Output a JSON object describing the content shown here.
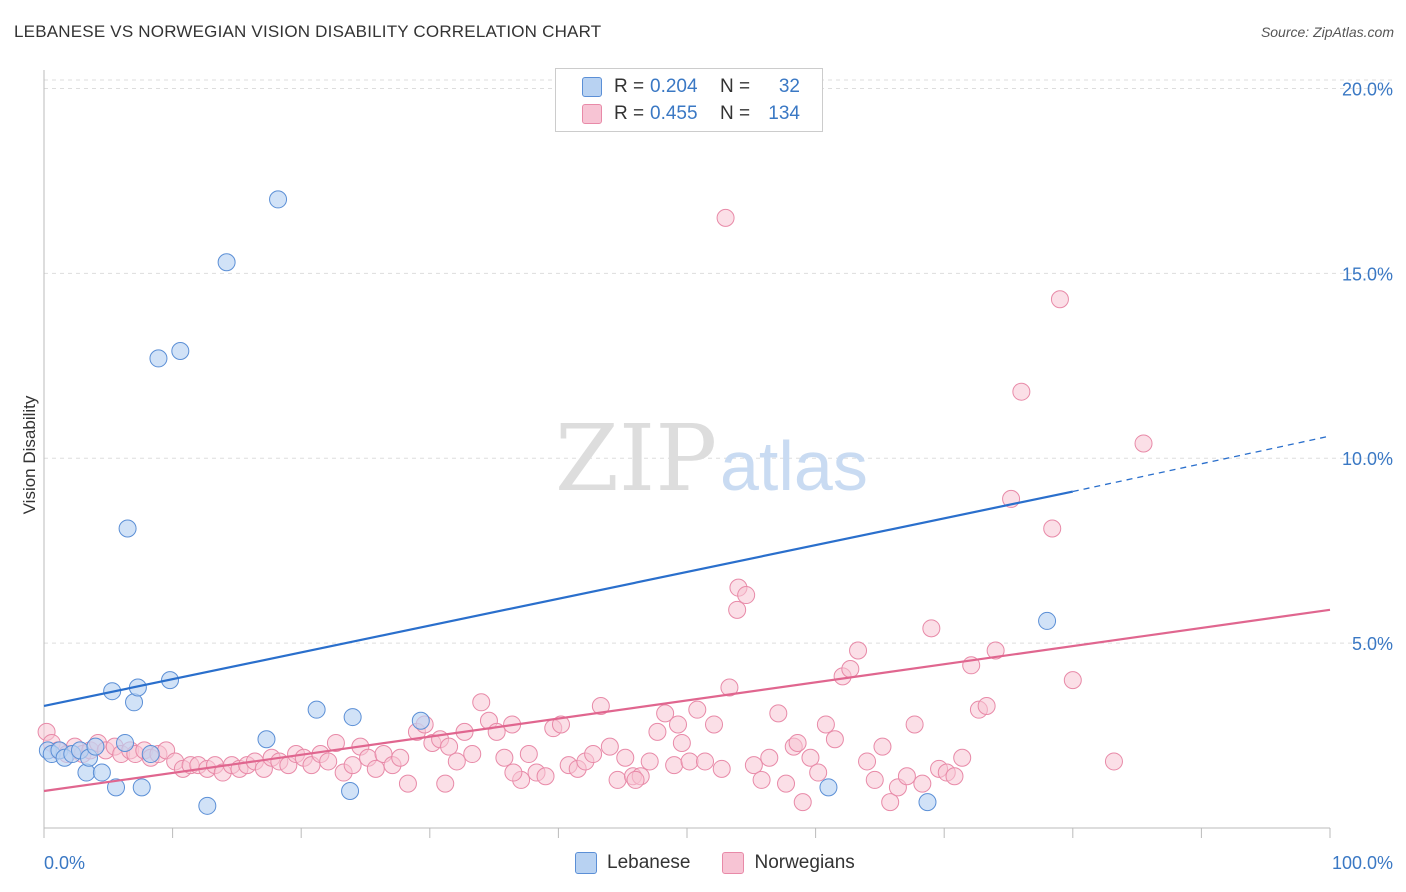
{
  "header": {
    "title": "LEBANESE VS NORWEGIAN VISION DISABILITY CORRELATION CHART",
    "source": "Source: ZipAtlas.com"
  },
  "watermark": {
    "zip": "ZIP",
    "atlas": "atlas"
  },
  "legend": {
    "rows": [
      {
        "r_label": "R =",
        "r_value": "0.204",
        "n_label": "N =",
        "n_value": "32"
      },
      {
        "r_label": "R =",
        "r_value": "0.455",
        "n_label": "N =",
        "n_value": "134"
      }
    ]
  },
  "bottom_legend": {
    "item1": "Lebanese",
    "item2": "Norwegians"
  },
  "colors": {
    "blue_fill": "#b8d2f2",
    "blue_stroke": "#5b8fd6",
    "blue_line": "#2a6fcc",
    "pink_fill": "#f7c4d4",
    "pink_stroke": "#e88aa8",
    "pink_line": "#e0668f",
    "tick_text": "#3a78c4",
    "grid": "#dddddd"
  },
  "chart_data": {
    "type": "scatter",
    "title": "LEBANESE VS NORWEGIAN VISION DISABILITY CORRELATION CHART",
    "xlabel": "",
    "ylabel": "Vision Disability",
    "xlim": [
      0,
      100
    ],
    "ylim": [
      0,
      20.5
    ],
    "x_tick_labels": [
      "0.0%",
      "100.0%"
    ],
    "y_ticks": [
      5,
      10,
      15,
      20
    ],
    "y_tick_labels": [
      "5.0%",
      "10.0%",
      "15.0%",
      "20.0%"
    ],
    "grid": true,
    "legend_position": "top-center",
    "series": [
      {
        "name": "Lebanese",
        "r": 0.204,
        "n": 32,
        "trend": {
          "x0": 0,
          "y0": 3.3,
          "x1": 80,
          "y1": 9.1,
          "dashed_to_x": 100,
          "dashed_to_y": 10.6
        },
        "points": [
          [
            0.3,
            2.1
          ],
          [
            0.6,
            2.0
          ],
          [
            1.2,
            2.1
          ],
          [
            1.6,
            1.9
          ],
          [
            2.2,
            2.0
          ],
          [
            2.8,
            2.1
          ],
          [
            3.3,
            1.5
          ],
          [
            3.5,
            1.9
          ],
          [
            4.0,
            2.2
          ],
          [
            4.5,
            1.5
          ],
          [
            5.3,
            3.7
          ],
          [
            5.6,
            1.1
          ],
          [
            6.3,
            2.3
          ],
          [
            6.5,
            8.1
          ],
          [
            7.0,
            3.4
          ],
          [
            7.3,
            3.8
          ],
          [
            7.6,
            1.1
          ],
          [
            8.3,
            2.0
          ],
          [
            8.9,
            12.7
          ],
          [
            9.8,
            4.0
          ],
          [
            10.6,
            12.9
          ],
          [
            12.7,
            0.6
          ],
          [
            14.2,
            15.3
          ],
          [
            17.3,
            2.4
          ],
          [
            18.2,
            17.0
          ],
          [
            21.2,
            3.2
          ],
          [
            23.8,
            1.0
          ],
          [
            24.0,
            3.0
          ],
          [
            29.3,
            2.9
          ],
          [
            61.0,
            1.1
          ],
          [
            68.7,
            0.7
          ],
          [
            78.0,
            5.6
          ]
        ]
      },
      {
        "name": "Norwegians",
        "r": 0.455,
        "n": 134,
        "trend": {
          "x0": 0,
          "y0": 1.0,
          "x1": 100,
          "y1": 5.9
        },
        "points": [
          [
            0.2,
            2.6
          ],
          [
            0.6,
            2.3
          ],
          [
            1.1,
            2.1
          ],
          [
            1.8,
            2.0
          ],
          [
            2.4,
            2.2
          ],
          [
            3.0,
            2.0
          ],
          [
            3.6,
            2.1
          ],
          [
            4.2,
            2.3
          ],
          [
            4.8,
            2.1
          ],
          [
            5.5,
            2.2
          ],
          [
            6.0,
            2.0
          ],
          [
            6.7,
            2.1
          ],
          [
            7.1,
            2.0
          ],
          [
            7.8,
            2.1
          ],
          [
            8.3,
            1.9
          ],
          [
            8.9,
            2.0
          ],
          [
            9.5,
            2.1
          ],
          [
            10.2,
            1.8
          ],
          [
            10.8,
            1.6
          ],
          [
            11.4,
            1.7
          ],
          [
            12.0,
            1.7
          ],
          [
            12.7,
            1.6
          ],
          [
            13.3,
            1.7
          ],
          [
            13.9,
            1.5
          ],
          [
            14.6,
            1.7
          ],
          [
            15.2,
            1.6
          ],
          [
            15.8,
            1.7
          ],
          [
            16.4,
            1.8
          ],
          [
            17.1,
            1.6
          ],
          [
            17.7,
            1.9
          ],
          [
            18.3,
            1.8
          ],
          [
            19.0,
            1.7
          ],
          [
            19.6,
            2.0
          ],
          [
            20.2,
            1.9
          ],
          [
            20.8,
            1.7
          ],
          [
            21.5,
            2.0
          ],
          [
            22.1,
            1.8
          ],
          [
            22.7,
            2.3
          ],
          [
            23.3,
            1.5
          ],
          [
            24.0,
            1.7
          ],
          [
            24.6,
            2.2
          ],
          [
            25.2,
            1.9
          ],
          [
            25.8,
            1.6
          ],
          [
            26.4,
            2.0
          ],
          [
            27.1,
            1.7
          ],
          [
            27.7,
            1.9
          ],
          [
            28.3,
            1.2
          ],
          [
            29.0,
            2.6
          ],
          [
            29.6,
            2.8
          ],
          [
            30.2,
            2.3
          ],
          [
            30.8,
            2.4
          ],
          [
            31.5,
            2.2
          ],
          [
            32.1,
            1.8
          ],
          [
            32.7,
            2.6
          ],
          [
            33.3,
            2.0
          ],
          [
            34.0,
            3.4
          ],
          [
            34.6,
            2.9
          ],
          [
            35.2,
            2.6
          ],
          [
            35.8,
            1.9
          ],
          [
            36.4,
            2.8
          ],
          [
            37.1,
            1.3
          ],
          [
            37.7,
            2.0
          ],
          [
            38.3,
            1.5
          ],
          [
            39.0,
            1.4
          ],
          [
            39.6,
            2.7
          ],
          [
            40.2,
            2.8
          ],
          [
            40.8,
            1.7
          ],
          [
            41.5,
            1.6
          ],
          [
            42.1,
            1.8
          ],
          [
            42.7,
            2.0
          ],
          [
            43.3,
            3.3
          ],
          [
            44.0,
            2.2
          ],
          [
            44.6,
            1.3
          ],
          [
            45.2,
            1.9
          ],
          [
            45.8,
            1.4
          ],
          [
            46.4,
            1.4
          ],
          [
            47.1,
            1.8
          ],
          [
            47.7,
            2.6
          ],
          [
            48.3,
            3.1
          ],
          [
            49.0,
            1.7
          ],
          [
            49.6,
            2.3
          ],
          [
            50.2,
            1.8
          ],
          [
            50.8,
            3.2
          ],
          [
            51.4,
            1.8
          ],
          [
            52.1,
            2.8
          ],
          [
            52.7,
            1.6
          ],
          [
            53.3,
            3.8
          ],
          [
            54.0,
            6.5
          ],
          [
            54.6,
            6.3
          ],
          [
            53.9,
            5.9
          ],
          [
            55.2,
            1.7
          ],
          [
            55.8,
            1.3
          ],
          [
            56.4,
            1.9
          ],
          [
            57.1,
            3.1
          ],
          [
            57.7,
            1.2
          ],
          [
            58.3,
            2.2
          ],
          [
            59.0,
            0.7
          ],
          [
            59.6,
            1.9
          ],
          [
            60.2,
            1.5
          ],
          [
            60.8,
            2.8
          ],
          [
            61.5,
            2.4
          ],
          [
            62.1,
            4.1
          ],
          [
            62.7,
            4.3
          ],
          [
            63.3,
            4.8
          ],
          [
            64.0,
            1.8
          ],
          [
            64.6,
            1.3
          ],
          [
            65.2,
            2.2
          ],
          [
            65.8,
            0.7
          ],
          [
            66.4,
            1.1
          ],
          [
            67.1,
            1.4
          ],
          [
            67.7,
            2.8
          ],
          [
            68.3,
            1.2
          ],
          [
            69.0,
            5.4
          ],
          [
            69.6,
            1.6
          ],
          [
            70.2,
            1.5
          ],
          [
            70.8,
            1.4
          ],
          [
            71.4,
            1.9
          ],
          [
            72.1,
            4.4
          ],
          [
            72.7,
            3.2
          ],
          [
            73.3,
            3.3
          ],
          [
            74.0,
            4.8
          ],
          [
            75.2,
            8.9
          ],
          [
            76.0,
            11.8
          ],
          [
            78.4,
            8.1
          ],
          [
            79.0,
            14.3
          ],
          [
            80.0,
            4.0
          ],
          [
            83.2,
            1.8
          ],
          [
            85.5,
            10.4
          ],
          [
            53.0,
            16.5
          ],
          [
            31.2,
            1.2
          ],
          [
            36.5,
            1.5
          ],
          [
            46.0,
            1.3
          ],
          [
            49.3,
            2.8
          ],
          [
            58.6,
            2.3
          ]
        ]
      }
    ]
  }
}
